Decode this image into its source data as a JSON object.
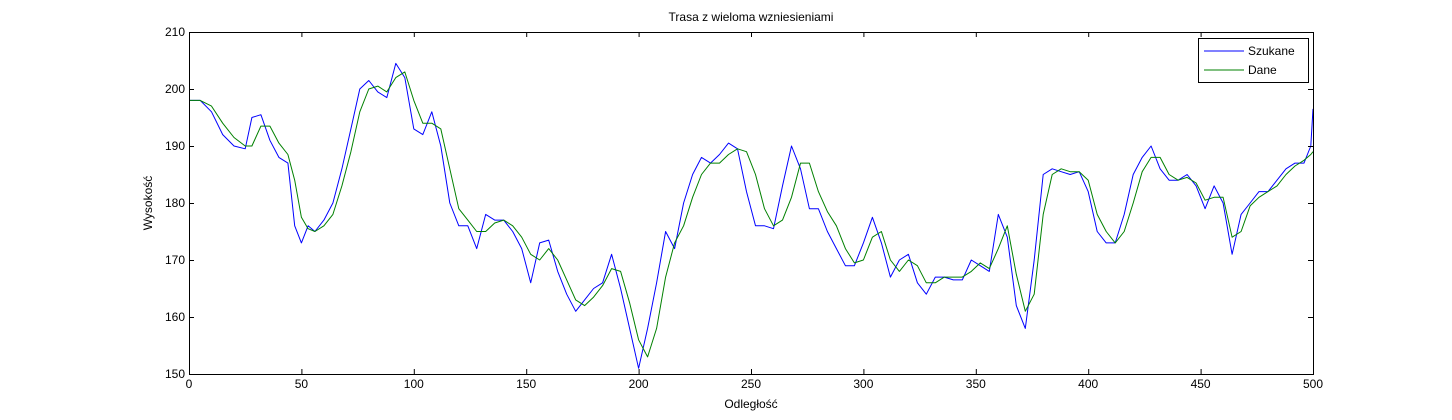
{
  "chart_data": {
    "type": "line",
    "title": "Trasa z wieloma wzniesieniami",
    "xlabel": "Odległość",
    "ylabel": "Wysokość",
    "xlim": [
      0,
      500
    ],
    "ylim": [
      150,
      210
    ],
    "xticks": [
      0,
      50,
      100,
      150,
      200,
      250,
      300,
      350,
      400,
      450,
      500
    ],
    "yticks": [
      150,
      160,
      170,
      180,
      190,
      200,
      210
    ],
    "grid": false,
    "legend_position": "top-right",
    "series": [
      {
        "name": "Szukane",
        "color": "#0000ff",
        "x": [
          0,
          5,
          10,
          15,
          20,
          25,
          28,
          32,
          36,
          40,
          44,
          47,
          50,
          53,
          56,
          60,
          64,
          68,
          72,
          76,
          80,
          84,
          88,
          92,
          96,
          100,
          104,
          108,
          112,
          116,
          120,
          124,
          128,
          132,
          136,
          140,
          144,
          148,
          152,
          156,
          160,
          164,
          168,
          172,
          176,
          180,
          184,
          188,
          192,
          196,
          200,
          204,
          208,
          212,
          216,
          220,
          224,
          228,
          232,
          236,
          240,
          244,
          248,
          252,
          256,
          260,
          264,
          268,
          272,
          276,
          280,
          284,
          288,
          292,
          296,
          300,
          304,
          308,
          312,
          316,
          320,
          324,
          328,
          332,
          336,
          340,
          344,
          348,
          352,
          356,
          360,
          364,
          368,
          372,
          376,
          380,
          384,
          388,
          392,
          396,
          400,
          404,
          408,
          412,
          416,
          420,
          424,
          428,
          432,
          436,
          440,
          444,
          448,
          452,
          456,
          460,
          464,
          468,
          472,
          476,
          480,
          484,
          488,
          492,
          496,
          499,
          500
        ],
        "y": [
          198,
          198,
          196,
          192,
          190,
          189.5,
          195,
          195.5,
          191,
          188,
          187,
          176,
          173,
          176,
          175,
          177,
          180,
          186,
          193,
          200,
          201.5,
          199.5,
          198.5,
          204.5,
          202,
          193,
          192,
          196,
          190,
          180,
          176,
          176,
          172,
          178,
          177,
          177,
          175,
          172,
          166,
          173,
          173.5,
          168,
          164,
          161,
          163,
          165,
          166,
          171,
          165,
          158,
          151,
          158,
          166,
          175,
          172,
          180,
          185,
          188,
          187,
          188.5,
          190.5,
          189.5,
          182,
          176,
          176,
          175.5,
          183,
          190,
          186,
          179,
          179,
          175,
          172,
          169,
          169,
          173,
          177.5,
          173,
          167,
          170,
          171,
          166,
          164,
          167,
          167,
          166.5,
          166.5,
          170,
          169,
          168,
          178,
          174,
          162,
          158,
          170,
          185,
          186,
          185.5,
          185,
          185.5,
          182,
          175,
          173,
          173,
          178,
          185,
          188,
          190,
          186,
          184,
          184,
          185,
          183,
          179,
          183,
          180,
          171,
          178,
          180,
          182,
          182,
          184,
          186,
          187,
          187,
          190,
          196.5
        ]
      },
      {
        "name": "Dane",
        "color": "#008000",
        "x": [
          0,
          5,
          10,
          15,
          20,
          25,
          28,
          32,
          36,
          40,
          44,
          47,
          50,
          53,
          56,
          60,
          64,
          68,
          72,
          76,
          80,
          84,
          88,
          92,
          96,
          100,
          104,
          108,
          112,
          116,
          120,
          124,
          128,
          132,
          136,
          140,
          144,
          148,
          152,
          156,
          160,
          164,
          168,
          172,
          176,
          180,
          184,
          188,
          192,
          196,
          200,
          204,
          208,
          212,
          216,
          220,
          224,
          228,
          232,
          236,
          240,
          244,
          248,
          252,
          256,
          260,
          264,
          268,
          272,
          276,
          280,
          284,
          288,
          292,
          296,
          300,
          304,
          308,
          312,
          316,
          320,
          324,
          328,
          332,
          336,
          340,
          344,
          348,
          352,
          356,
          360,
          364,
          368,
          372,
          376,
          380,
          384,
          388,
          392,
          396,
          400,
          404,
          408,
          412,
          416,
          420,
          424,
          428,
          432,
          436,
          440,
          444,
          448,
          452,
          456,
          460,
          464,
          468,
          472,
          476,
          480,
          484,
          488,
          492,
          496,
          499,
          500
        ],
        "y": [
          198,
          198,
          197,
          194,
          191.5,
          190,
          190,
          193.5,
          193.5,
          190.5,
          188.5,
          184,
          177.5,
          175.5,
          175,
          176,
          178,
          183,
          189,
          196,
          200,
          200.5,
          199.5,
          202,
          203,
          198,
          194,
          194,
          193,
          186,
          179,
          177,
          175,
          175,
          176.5,
          177,
          176,
          174,
          171,
          170,
          172,
          170,
          166.5,
          163,
          162,
          163.5,
          165.5,
          168.5,
          168,
          162.5,
          156,
          153,
          158,
          167,
          173,
          176,
          181,
          185,
          187,
          187,
          188.5,
          189.5,
          189,
          185,
          179,
          176,
          177,
          181,
          187,
          187,
          182,
          178.5,
          176,
          172,
          169.5,
          170,
          174,
          175,
          170,
          168,
          170,
          169,
          166,
          166,
          167,
          167,
          167,
          168,
          169.5,
          168.5,
          172,
          176,
          167.5,
          161,
          164,
          178,
          185,
          186,
          185.5,
          185.5,
          184,
          178,
          175,
          173,
          175,
          180,
          185.5,
          188,
          188,
          185,
          184,
          184.5,
          183.5,
          180.5,
          181,
          181,
          174,
          175,
          179.5,
          181,
          182,
          183,
          185,
          186.5,
          187.5,
          188.5,
          189
        ]
      }
    ]
  }
}
